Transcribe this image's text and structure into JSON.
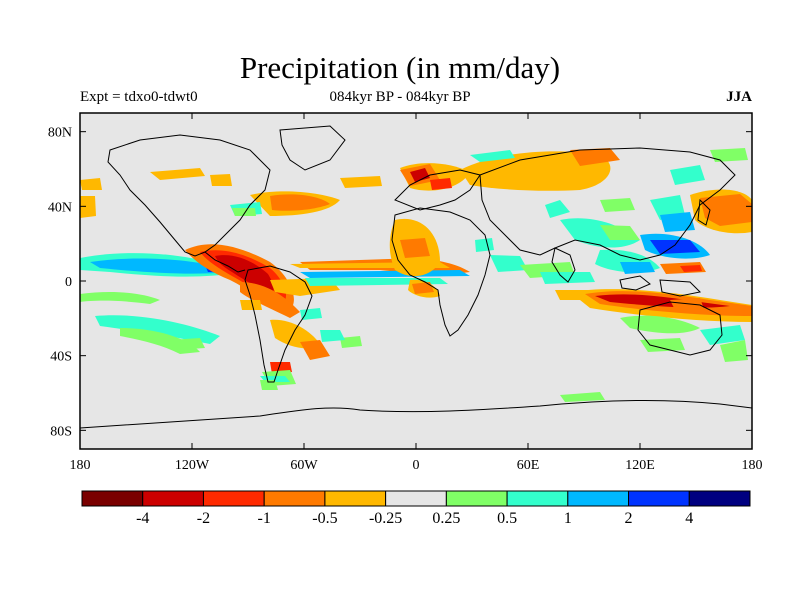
{
  "title": "Precipitation (in mm/day)",
  "left_subtitle": "Expt = tdxo0-tdwt0",
  "center_subtitle": "084kyr BP - 084kyr BP",
  "right_subtitle": "JJA",
  "lat_ticks": [
    "80N",
    "40N",
    "0",
    "40S",
    "80S"
  ],
  "lon_ticks": [
    "180",
    "120W",
    "60W",
    "0",
    "60E",
    "120E",
    "180"
  ],
  "colorbar": {
    "colors": [
      "#7a0000",
      "#cc0000",
      "#ff2a00",
      "#ff7a00",
      "#ffb800",
      "#e6e6e6",
      "#80ff66",
      "#33ffcc",
      "#00b8ff",
      "#0033ff",
      "#000080"
    ],
    "labels": [
      "-4",
      "-2",
      "-1",
      "-0.5",
      "-0.25",
      "0.25",
      "0.5",
      "1",
      "2",
      "4"
    ]
  },
  "map": {
    "background": "#e6e6e6",
    "lon_range": [
      -180,
      180
    ],
    "lat_range": [
      -90,
      90
    ]
  }
}
